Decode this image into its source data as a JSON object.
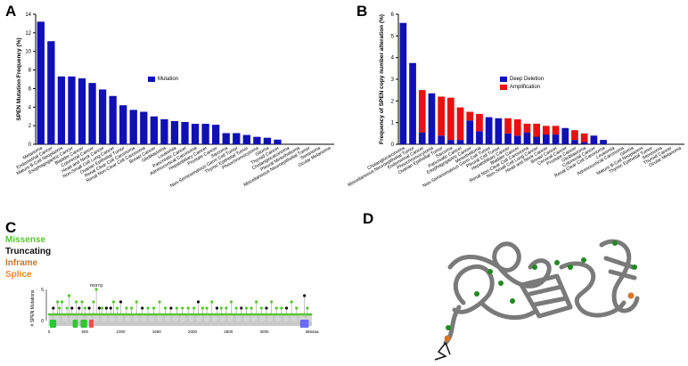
{
  "panels": {
    "a": "A",
    "b": "B",
    "c": "C",
    "d": "D"
  },
  "colors": {
    "blue": "#1010b4",
    "red": "#e81010",
    "missense": "#56c82c",
    "truncating": "#111111",
    "inframe": "#c9772a",
    "splice": "#f28a1e",
    "domain_green": "#2ec82e",
    "domain_red": "#f04a4a",
    "domain_blue": "#6a6aff",
    "protein_gray": "#7a7a7a",
    "residue_green": "#1f8a1f",
    "residue_orange": "#d4762a"
  },
  "chart_data": [
    {
      "type": "bar",
      "ylabel": "SPEN Mutation Frequency (%)",
      "ylim": [
        0,
        14
      ],
      "yticks": [
        0,
        2,
        4,
        6,
        8,
        10,
        12,
        14
      ],
      "legend": "right",
      "categories": [
        "Melanoma",
        "Endometrial Cancer",
        "Mature B-Cell Neoplasms",
        "Esophagogastric Cancer",
        "Bladder Cancer",
        "Colorectal Cancer",
        "Head and Neck Cancer",
        "Non-Small Cell Lung Cancer",
        "Ovarian Epithelial Tumor",
        "Renal Clear Cell Carcinoma",
        "Renal Non-Clear Cell Carcinoma",
        "Breast Cancer",
        "Glioblastoma",
        "Leukemia",
        "Pancreatic Cancer",
        "Adrenocortical Carcinoma",
        "Hepatobiliary Cancer",
        "Prostate Cancer",
        "Sarcoma",
        "Non-Seminomatous Germ Cell Tumor",
        "Thymic Epithelial Tumor",
        "Pheochromocytoma",
        "Glioma",
        "Thyroid Cancer",
        "Cholangiocarcinoma",
        "Pleural Mesothelioma",
        "Miscellaneous Neuroepithelial Tumor",
        "Seminoma",
        "Ocular Melanoma"
      ],
      "series": [
        {
          "name": "Mutation",
          "values": [
            13.2,
            11.1,
            7.3,
            7.3,
            7.1,
            6.6,
            5.9,
            5.2,
            4.2,
            3.7,
            3.5,
            3.0,
            2.7,
            2.5,
            2.4,
            2.2,
            2.2,
            2.1,
            1.2,
            1.2,
            1.0,
            0.8,
            0.7,
            0.5,
            0,
            0,
            0,
            0,
            0
          ]
        }
      ]
    },
    {
      "type": "bar",
      "stacked": true,
      "ylabel": "Frequency of SPEN copy number alteration (%)",
      "ylim": [
        0,
        6
      ],
      "yticks": [
        0,
        1,
        2,
        3,
        4,
        5,
        6
      ],
      "legend": "right",
      "categories": [
        "Cholangiocarcinoma",
        "Miscellaneous Neuroepithelial Tumor",
        "Endometrial Cancer",
        "Pheochromocytoma",
        "Ovarian Epithelial Tumor",
        "Sarcoma",
        "Pancreatic Cancer",
        "Esophagogastric Cancer",
        "Mesothelioma",
        "Non-Seminomatous Germ Cell Tumor",
        "Pleural Cell Tumor",
        "Hepatobiliary Cancer",
        "Bladder Cancer",
        "Renal Non-Clear Cell Carcinoma",
        "Non-Small Cell Lung Cancer",
        "Head and Neck Cancer",
        "Breast Cancer",
        "Cervical Cancer",
        "Prostate Cancer",
        "Glioblastoma",
        "Colorectal Cancer",
        "Renal Clear Cell Carcinoma",
        "Leukemia",
        "Adrenocortical Carcinoma",
        "Glioma",
        "Mature B-Cell Neoplasms",
        "Thymic Epithelial Tumor",
        "Seminoma",
        "Thyroid Cancer",
        "Ocular Melanoma"
      ],
      "series": [
        {
          "name": "Deep Deletion",
          "values": [
            5.6,
            3.75,
            0.55,
            2.35,
            0.4,
            0.2,
            0.2,
            1.1,
            0.6,
            1.25,
            1.2,
            0.5,
            0.4,
            0.55,
            0.35,
            0.45,
            0.45,
            0.75,
            0.2,
            0.1,
            0.4,
            0.2,
            0,
            0,
            0,
            0,
            0,
            0,
            0,
            0
          ]
        },
        {
          "name": "Amplification",
          "values": [
            0,
            0,
            1.95,
            0,
            1.8,
            1.95,
            1.5,
            0.4,
            0.8,
            0,
            0,
            0.7,
            0.75,
            0.4,
            0.6,
            0.4,
            0.4,
            0,
            0.45,
            0.4,
            0,
            0,
            0,
            0,
            0,
            0,
            0,
            0,
            0,
            0
          ]
        }
      ]
    },
    {
      "type": "scatter",
      "subtype": "lollipop",
      "ylabel": "# SPEN Mutations",
      "ylim": [
        0,
        5
      ],
      "yticks": [
        0,
        5
      ],
      "xlim": [
        0,
        3664
      ],
      "xticks": [
        "0",
        "500",
        "1000",
        "1500",
        "2000",
        "2500",
        "3000",
        "3664aa"
      ],
      "xtick_values": [
        0,
        500,
        1000,
        1500,
        2000,
        2500,
        3000,
        3664
      ],
      "hotspot_label": "R837Q",
      "legend": [
        {
          "label": "Missense",
          "key": "missense"
        },
        {
          "label": "Truncating",
          "key": "truncating"
        },
        {
          "label": "Inframe",
          "key": "inframe"
        },
        {
          "label": "Splice",
          "key": "splice"
        }
      ],
      "domains": [
        {
          "start": 10,
          "end": 100,
          "key": "domain_green"
        },
        {
          "start": 330,
          "end": 400,
          "key": "domain_green"
        },
        {
          "start": 440,
          "end": 530,
          "key": "domain_green"
        },
        {
          "start": 560,
          "end": 620,
          "key": "domain_red"
        },
        {
          "start": 3500,
          "end": 3620,
          "key": "domain_blue"
        }
      ],
      "mutations": [
        [
          60,
          2,
          "truncating"
        ],
        [
          120,
          3,
          "missense"
        ],
        [
          145,
          2,
          "missense"
        ],
        [
          180,
          3,
          "missense"
        ],
        [
          250,
          2,
          "missense"
        ],
        [
          280,
          4,
          "missense"
        ],
        [
          320,
          2,
          "truncating"
        ],
        [
          380,
          3,
          "missense"
        ],
        [
          420,
          2,
          "truncating"
        ],
        [
          460,
          3,
          "missense"
        ],
        [
          500,
          2,
          "missense"
        ],
        [
          560,
          2,
          "truncating"
        ],
        [
          620,
          3,
          "missense"
        ],
        [
          660,
          5,
          "missense"
        ],
        [
          700,
          2,
          "truncating"
        ],
        [
          740,
          2,
          "missense"
        ],
        [
          800,
          2,
          "truncating"
        ],
        [
          860,
          2,
          "truncating"
        ],
        [
          900,
          3,
          "missense"
        ],
        [
          950,
          2,
          "missense"
        ],
        [
          1000,
          3,
          "truncating"
        ],
        [
          1080,
          2,
          "missense"
        ],
        [
          1150,
          2,
          "missense"
        ],
        [
          1220,
          3,
          "missense"
        ],
        [
          1300,
          2,
          "truncating"
        ],
        [
          1380,
          2,
          "missense"
        ],
        [
          1460,
          2,
          "missense"
        ],
        [
          1540,
          3,
          "missense"
        ],
        [
          1620,
          2,
          "missense"
        ],
        [
          1700,
          2,
          "truncating"
        ],
        [
          1780,
          2,
          "missense"
        ],
        [
          1860,
          2,
          "missense"
        ],
        [
          1940,
          2,
          "missense"
        ],
        [
          2020,
          2,
          "missense"
        ],
        [
          2080,
          3,
          "truncating"
        ],
        [
          2140,
          2,
          "missense"
        ],
        [
          2200,
          2,
          "missense"
        ],
        [
          2270,
          3,
          "missense"
        ],
        [
          2340,
          2,
          "truncating"
        ],
        [
          2400,
          2,
          "missense"
        ],
        [
          2470,
          2,
          "missense"
        ],
        [
          2540,
          3,
          "missense"
        ],
        [
          2610,
          2,
          "missense"
        ],
        [
          2680,
          2,
          "truncating"
        ],
        [
          2750,
          2,
          "missense"
        ],
        [
          2820,
          2,
          "missense"
        ],
        [
          2890,
          3,
          "missense"
        ],
        [
          2960,
          2,
          "missense"
        ],
        [
          3030,
          2,
          "truncating"
        ],
        [
          3100,
          3,
          "missense"
        ],
        [
          3170,
          2,
          "missense"
        ],
        [
          3240,
          2,
          "missense"
        ],
        [
          3310,
          2,
          "truncating"
        ],
        [
          3380,
          3,
          "missense"
        ],
        [
          3450,
          2,
          "missense"
        ],
        [
          3560,
          4,
          "truncating"
        ],
        [
          3600,
          2,
          "missense"
        ]
      ]
    }
  ]
}
